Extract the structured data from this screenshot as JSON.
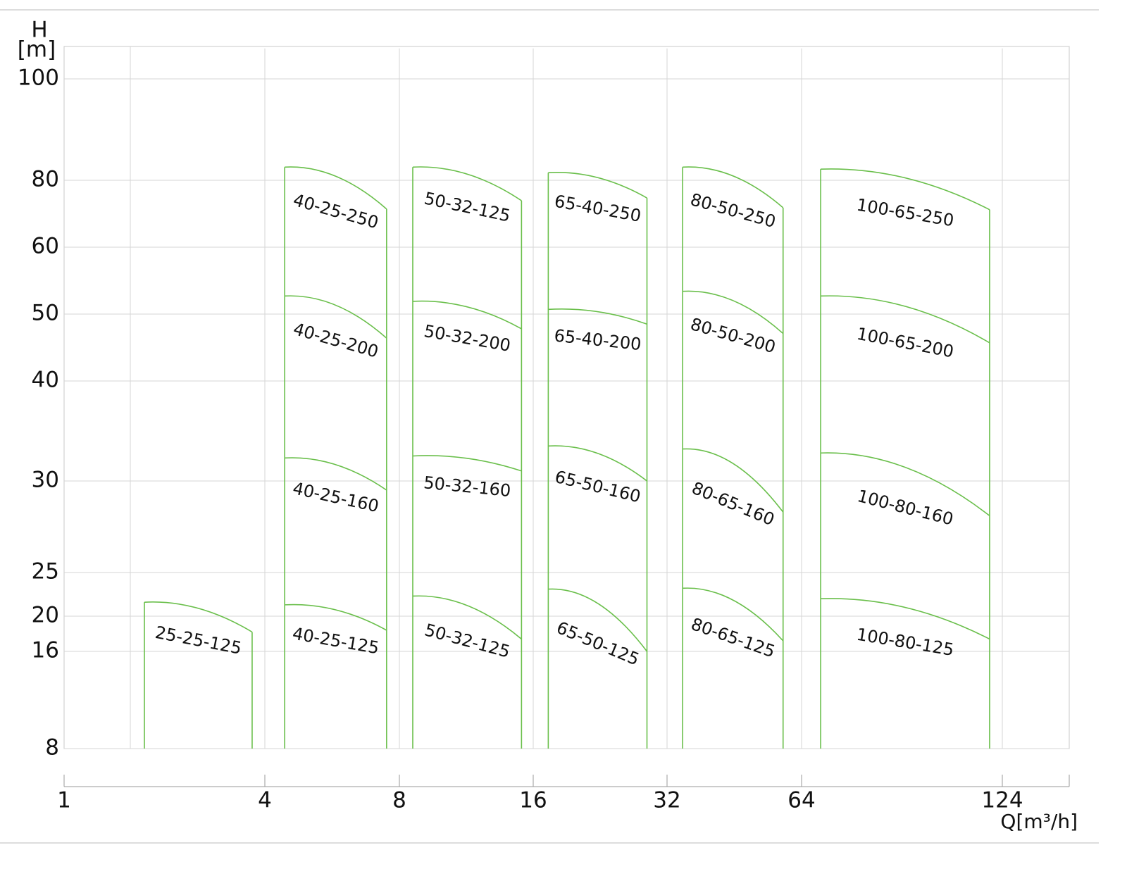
{
  "chart_data": {
    "type": "range",
    "y_label": "H",
    "y_unit": "[m]",
    "x_label": "Q[m³/h]",
    "xlim": [
      1,
      144
    ],
    "xticks": [
      1,
      4,
      8,
      16,
      32,
      64,
      124
    ],
    "ylim": [
      8,
      106
    ],
    "yticks": [
      8,
      16,
      20,
      25,
      30,
      40,
      50,
      60,
      80,
      100
    ],
    "grid": true,
    "color": "#6abf4b",
    "pumps": [
      {
        "q": [
          2.2,
          3.81
        ],
        "curves": [
          {
            "name": "25-25-125",
            "h": [
              21.6,
              18.2
            ]
          }
        ]
      },
      {
        "q": [
          4.59,
          7.62
        ],
        "curves": [
          {
            "name": "40-25-250",
            "h": [
              82.6,
              71.4
            ]
          },
          {
            "name": "40-25-200",
            "h": [
              52.7,
              46.4
            ]
          },
          {
            "name": "40-25-160",
            "h": [
              32.3,
              29.5
            ]
          },
          {
            "name": "40-25-125",
            "h": [
              21.3,
              18.4
            ]
          }
        ]
      },
      {
        "q": [
          8.8,
          15.3
        ],
        "curves": [
          {
            "name": "50-32-125",
            "h": [
              82.6,
              73.9
            ]
          },
          {
            "name": "50-32-200",
            "h": [
              51.9,
              47.8
            ]
          },
          {
            "name": "50-32-160",
            "h": [
              32.5,
              31.0
            ]
          },
          {
            "name": "50-32-125",
            "h": [
              22.3,
              17.4
            ]
          }
        ]
      },
      {
        "q": [
          17.8,
          29.6
        ],
        "curves": [
          {
            "name": "65-40-250",
            "h": [
              81.5,
              74.7
            ]
          },
          {
            "name": "65-40-200",
            "h": [
              50.7,
              48.5
            ]
          },
          {
            "name": "65-50-160",
            "h": [
              33.5,
              30
            ]
          },
          {
            "name": "65-50-125",
            "h": [
              23.1,
              16
            ]
          }
        ]
      },
      {
        "q": [
          35.7,
          59.6
        ],
        "curves": [
          {
            "name": "80-50-250",
            "h": [
              82.6,
              71.8
            ]
          },
          {
            "name": "80-50-200",
            "h": [
              53.4,
              47.1
            ]
          },
          {
            "name": "80-65-160",
            "h": [
              33.2,
              28.3
            ]
          },
          {
            "name": "80-65-125",
            "h": [
              23.2,
              17.2
            ]
          }
        ]
      },
      {
        "q": [
          69.7,
          120.2
        ],
        "curves": [
          {
            "name": "100-65-250",
            "h": [
              82.2,
              71.2
            ]
          },
          {
            "name": "100-65-200",
            "h": [
              52.7,
              45.7
            ]
          },
          {
            "name": "100-80-160",
            "h": [
              32.8,
              28.1
            ]
          },
          {
            "name": "100-80-125",
            "h": [
              22.0,
              17.4
            ]
          }
        ]
      }
    ]
  }
}
